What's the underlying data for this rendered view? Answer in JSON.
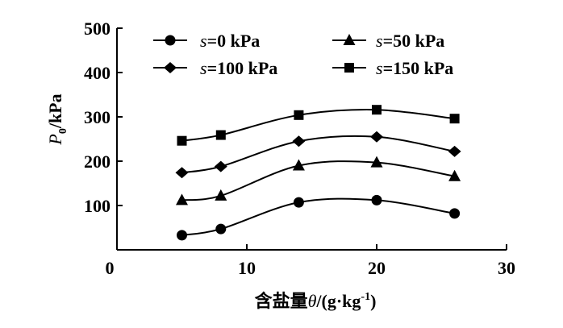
{
  "chart_data": {
    "type": "line",
    "title": "",
    "xlabel": "含盐量θ/(g·kg⁻¹)",
    "xlabel_parts": {
      "prefix": "含盐量",
      "symbol": "θ",
      "unit_open": "/(g·kg",
      "unit_exp": "-1",
      "unit_close": ")"
    },
    "ylabel": "P0/kPa",
    "ylabel_parts": {
      "symbol": "P",
      "sub": "0",
      "unit": "/kPa"
    },
    "xlim": [
      0,
      30
    ],
    "ylim": [
      0,
      500
    ],
    "xticks": [
      0,
      10,
      20,
      30
    ],
    "yticks": [
      100,
      200,
      300,
      400,
      500
    ],
    "grid": false,
    "legend_position": "top",
    "x": [
      5,
      8,
      14,
      20,
      26
    ],
    "series": [
      {
        "name": "s=0 kPa",
        "name_var": "s",
        "name_rest": "=0 kPa",
        "marker": "circle",
        "values": [
          33,
          47,
          107,
          112,
          82
        ]
      },
      {
        "name": "s=50 kPa",
        "name_var": "s",
        "name_rest": "=50 kPa",
        "marker": "triangle",
        "values": [
          112,
          122,
          190,
          197,
          166
        ]
      },
      {
        "name": "s=100 kPa",
        "name_var": "s",
        "name_rest": "=100 kPa",
        "marker": "diamond",
        "values": [
          174,
          188,
          245,
          255,
          222
        ]
      },
      {
        "name": "s=150 kPa",
        "name_var": "s",
        "name_rest": "=150 kPa",
        "marker": "square",
        "values": [
          246,
          259,
          304,
          316,
          296
        ]
      }
    ]
  }
}
